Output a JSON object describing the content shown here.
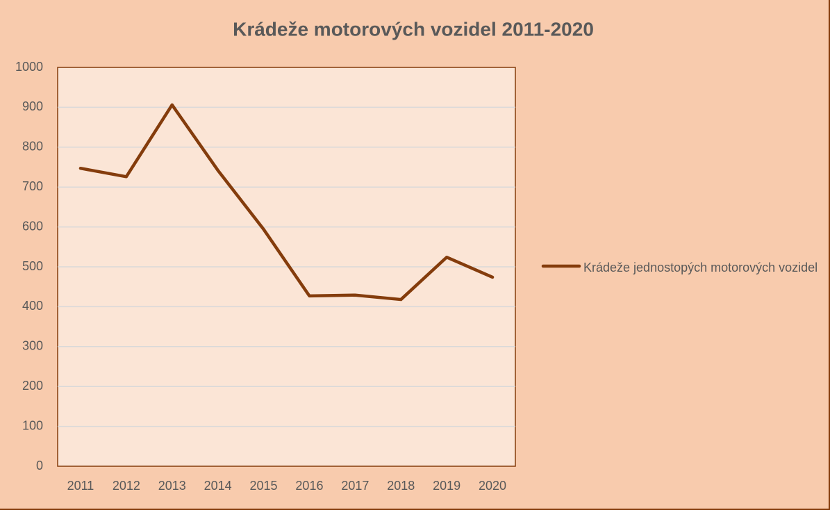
{
  "chart_data": {
    "type": "line",
    "title": "Krádeže motorových vozidel 2011-2020",
    "categories": [
      "2011",
      "2012",
      "2013",
      "2014",
      "2015",
      "2016",
      "2017",
      "2018",
      "2019",
      "2020"
    ],
    "series": [
      {
        "name": "Krádeže jednostopých motorových vozidel",
        "color": "#843c0c",
        "values": [
          747,
          726,
          906,
          742,
          594,
          427,
          429,
          418,
          524,
          474
        ]
      }
    ],
    "ylim": [
      0,
      1000
    ],
    "yticks": [
      0,
      100,
      200,
      300,
      400,
      500,
      600,
      700,
      800,
      900,
      1000
    ],
    "grid": true,
    "legend": "right"
  }
}
